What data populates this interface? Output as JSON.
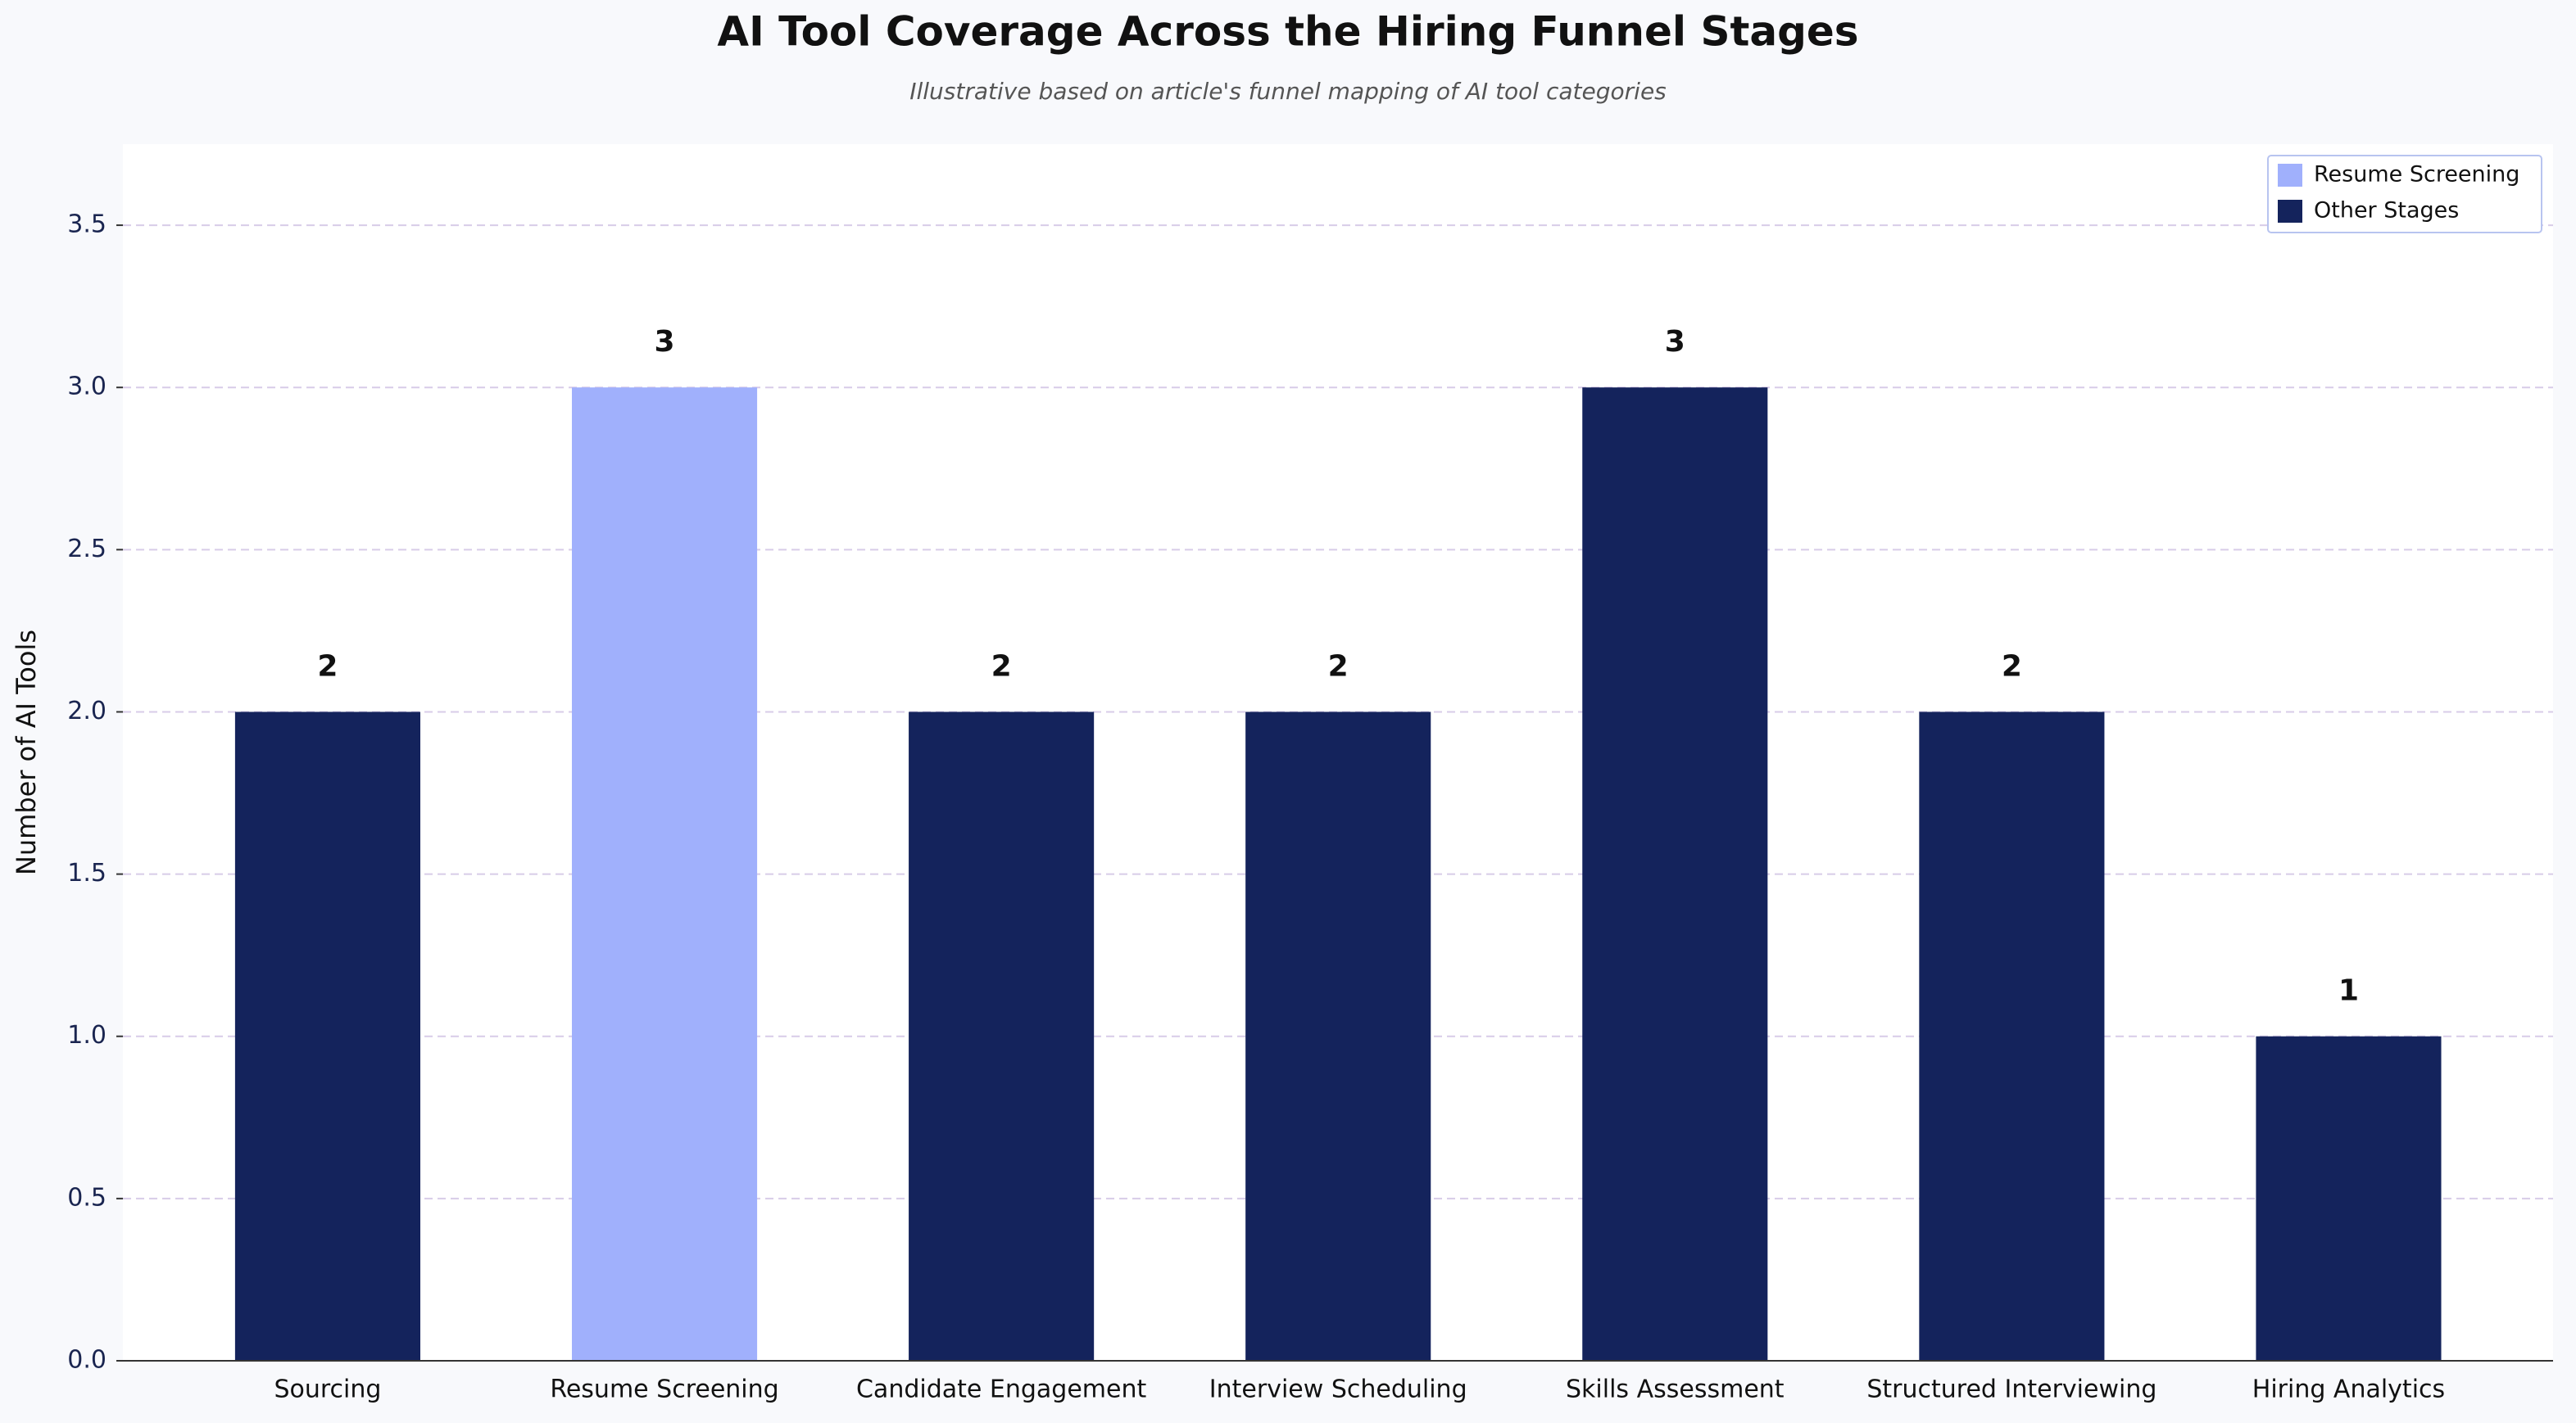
{
  "chart_data": {
    "type": "bar",
    "title": "AI Tool Coverage Across the Hiring Funnel Stages",
    "subtitle": "Illustrative based on article's funnel mapping of AI tool categories",
    "y_label": "Number of AI Tools",
    "categories": [
      "Sourcing",
      "Resume Screening",
      "Candidate Engagement",
      "Interview Scheduling",
      "Skills Assessment",
      "Structured Interviewing",
      "Hiring Analytics"
    ],
    "series": [
      {
        "name": "Resume Screening",
        "color": "#a0b0fc",
        "values": [
          null,
          3,
          null,
          null,
          null,
          null,
          null
        ]
      },
      {
        "name": "Other Stages",
        "color": "#14235c",
        "values": [
          2,
          null,
          2,
          2,
          3,
          2,
          1
        ]
      }
    ],
    "ylim": [
      0,
      3.75
    ],
    "yticks": [
      {
        "value": 0,
        "label": "0.0"
      },
      {
        "value": 0.5,
        "label": "0.5"
      },
      {
        "value": 1,
        "label": "1.0"
      },
      {
        "value": 1.5,
        "label": "1.5"
      },
      {
        "value": 2,
        "label": "2.0"
      },
      {
        "value": 2.5,
        "label": "2.5"
      },
      {
        "value": 3,
        "label": "3.0"
      },
      {
        "value": 3.5,
        "label": "3.5"
      }
    ],
    "grid": true,
    "legend": "upper right"
  }
}
